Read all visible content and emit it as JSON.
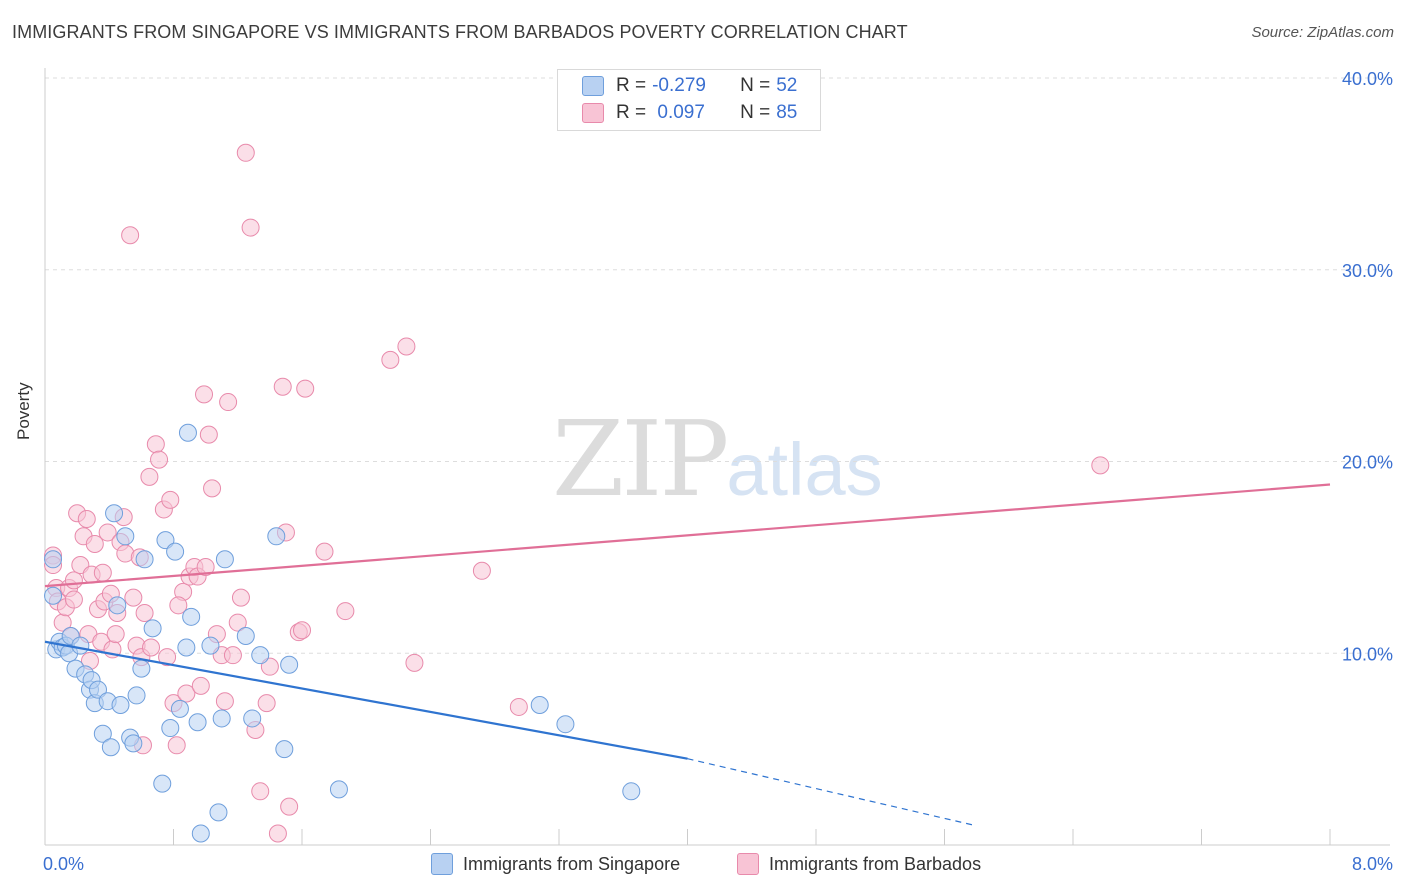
{
  "title": "IMMIGRANTS FROM SINGAPORE VS IMMIGRANTS FROM BARBADOS POVERTY CORRELATION CHART",
  "source": "Source: ZipAtlas.com",
  "watermark": {
    "zip": "ZIP",
    "atlas": "atlas"
  },
  "colors": {
    "singapore_fill": "#b8d1f2",
    "singapore_stroke": "#6f9fdc",
    "singapore_line": "#2f74d0",
    "barbados_fill": "#f8c4d5",
    "barbados_stroke": "#e88aab",
    "barbados_line": "#e06f97",
    "grid": "#dddddd",
    "tick_label": "#3a6fd0"
  },
  "legend": {
    "rows": [
      {
        "r_label": "R =",
        "r_value": "-0.279",
        "n_label": "N =",
        "n_value": "52"
      },
      {
        "r_label": "R =",
        "r_value": " 0.097",
        "n_label": "N =",
        "n_value": "85"
      }
    ]
  },
  "bottom_legend": {
    "singapore": "Immigrants from Singapore",
    "barbados": "Immigrants from Barbados"
  },
  "chart_data": {
    "type": "scatter",
    "title": "IMMIGRANTS FROM SINGAPORE VS IMMIGRANTS FROM BARBADOS POVERTY CORRELATION CHART",
    "xlabel": "",
    "ylabel": "Poverty",
    "xlim": [
      0,
      8
    ],
    "ylim": [
      0,
      40
    ],
    "x_tick_labels": {
      "min": "0.0%",
      "max": "8.0%"
    },
    "y_ticks": [
      10,
      20,
      30,
      40
    ],
    "y_tick_labels": [
      "10.0%",
      "20.0%",
      "30.0%",
      "40.0%"
    ],
    "grid": true,
    "series": [
      {
        "name": "Immigrants from Singapore",
        "r": -0.279,
        "n": 52,
        "trend": {
          "x0": 0.0,
          "y0": 10.6,
          "x1": 4.0,
          "y1": 4.5,
          "dash_to_x": 5.8,
          "dash_to_y": 1.0
        },
        "points": [
          [
            0.05,
            14.9
          ],
          [
            0.05,
            13.0
          ],
          [
            0.07,
            10.2
          ],
          [
            0.09,
            10.6
          ],
          [
            0.11,
            10.3
          ],
          [
            0.13,
            10.4
          ],
          [
            0.15,
            10.0
          ],
          [
            0.16,
            10.9
          ],
          [
            0.19,
            9.2
          ],
          [
            0.22,
            10.4
          ],
          [
            0.25,
            8.9
          ],
          [
            0.28,
            8.1
          ],
          [
            0.29,
            8.6
          ],
          [
            0.31,
            7.4
          ],
          [
            0.33,
            8.1
          ],
          [
            0.36,
            5.8
          ],
          [
            0.39,
            7.5
          ],
          [
            0.41,
            5.1
          ],
          [
            0.43,
            17.3
          ],
          [
            0.45,
            12.5
          ],
          [
            0.47,
            7.3
          ],
          [
            0.5,
            16.1
          ],
          [
            0.53,
            5.6
          ],
          [
            0.55,
            5.3
          ],
          [
            0.57,
            7.8
          ],
          [
            0.6,
            9.2
          ],
          [
            0.62,
            14.9
          ],
          [
            0.67,
            11.3
          ],
          [
            0.73,
            3.2
          ],
          [
            0.75,
            15.9
          ],
          [
            0.78,
            6.1
          ],
          [
            0.81,
            15.3
          ],
          [
            0.84,
            7.1
          ],
          [
            0.88,
            10.3
          ],
          [
            0.89,
            21.5
          ],
          [
            0.91,
            11.9
          ],
          [
            0.95,
            6.4
          ],
          [
            0.97,
            0.6
          ],
          [
            1.03,
            10.4
          ],
          [
            1.08,
            1.7
          ],
          [
            1.1,
            6.6
          ],
          [
            1.12,
            14.9
          ],
          [
            1.25,
            10.9
          ],
          [
            1.29,
            6.6
          ],
          [
            1.34,
            9.9
          ],
          [
            1.44,
            16.1
          ],
          [
            1.49,
            5.0
          ],
          [
            1.52,
            9.4
          ],
          [
            1.83,
            2.9
          ],
          [
            3.08,
            7.3
          ],
          [
            3.24,
            6.3
          ],
          [
            3.65,
            2.8
          ]
        ]
      },
      {
        "name": "Immigrants from Barbados",
        "r": 0.097,
        "n": 85,
        "trend": {
          "x0": 0.0,
          "y0": 13.5,
          "x1": 8.0,
          "y1": 18.8
        },
        "points": [
          [
            0.05,
            15.1
          ],
          [
            0.05,
            14.6
          ],
          [
            0.07,
            13.4
          ],
          [
            0.08,
            12.7
          ],
          [
            0.11,
            11.6
          ],
          [
            0.13,
            12.4
          ],
          [
            0.15,
            13.4
          ],
          [
            0.16,
            10.9
          ],
          [
            0.18,
            13.8
          ],
          [
            0.2,
            17.3
          ],
          [
            0.22,
            14.6
          ],
          [
            0.24,
            16.1
          ],
          [
            0.26,
            17.0
          ],
          [
            0.27,
            11.0
          ],
          [
            0.28,
            9.6
          ],
          [
            0.29,
            14.1
          ],
          [
            0.31,
            15.7
          ],
          [
            0.33,
            12.3
          ],
          [
            0.35,
            10.6
          ],
          [
            0.37,
            12.7
          ],
          [
            0.39,
            16.3
          ],
          [
            0.41,
            13.1
          ],
          [
            0.42,
            10.2
          ],
          [
            0.45,
            12.1
          ],
          [
            0.47,
            15.8
          ],
          [
            0.49,
            17.1
          ],
          [
            0.5,
            15.2
          ],
          [
            0.53,
            31.8
          ],
          [
            0.55,
            12.9
          ],
          [
            0.57,
            10.4
          ],
          [
            0.59,
            15.0
          ],
          [
            0.61,
            5.2
          ],
          [
            0.62,
            12.1
          ],
          [
            0.65,
            19.2
          ],
          [
            0.69,
            20.9
          ],
          [
            0.71,
            20.1
          ],
          [
            0.74,
            17.5
          ],
          [
            0.76,
            9.8
          ],
          [
            0.78,
            18.0
          ],
          [
            0.8,
            7.4
          ],
          [
            0.82,
            5.2
          ],
          [
            0.86,
            13.2
          ],
          [
            0.88,
            7.9
          ],
          [
            0.9,
            14.0
          ],
          [
            0.93,
            14.5
          ],
          [
            0.95,
            14.0
          ],
          [
            0.97,
            8.3
          ],
          [
            0.99,
            23.5
          ],
          [
            1.02,
            21.4
          ],
          [
            1.04,
            18.6
          ],
          [
            1.07,
            11.0
          ],
          [
            1.1,
            9.9
          ],
          [
            1.12,
            7.5
          ],
          [
            1.14,
            23.1
          ],
          [
            1.17,
            9.9
          ],
          [
            1.2,
            11.6
          ],
          [
            1.22,
            12.9
          ],
          [
            1.25,
            36.1
          ],
          [
            1.28,
            32.2
          ],
          [
            1.31,
            6.0
          ],
          [
            1.34,
            2.8
          ],
          [
            1.38,
            7.4
          ],
          [
            1.4,
            9.3
          ],
          [
            1.45,
            0.6
          ],
          [
            1.48,
            23.9
          ],
          [
            1.5,
            16.3
          ],
          [
            1.52,
            2.0
          ],
          [
            1.58,
            11.1
          ],
          [
            1.6,
            11.2
          ],
          [
            1.62,
            23.8
          ],
          [
            1.74,
            15.3
          ],
          [
            1.87,
            12.2
          ],
          [
            2.15,
            25.3
          ],
          [
            2.25,
            26.0
          ],
          [
            2.3,
            9.5
          ],
          [
            2.72,
            14.3
          ],
          [
            2.95,
            7.2
          ],
          [
            6.57,
            19.8
          ],
          [
            0.18,
            12.8
          ],
          [
            0.44,
            11.0
          ],
          [
            0.6,
            9.8
          ],
          [
            0.66,
            10.3
          ],
          [
            0.36,
            14.2
          ],
          [
            0.83,
            12.5
          ],
          [
            1.0,
            14.5
          ]
        ]
      }
    ]
  }
}
